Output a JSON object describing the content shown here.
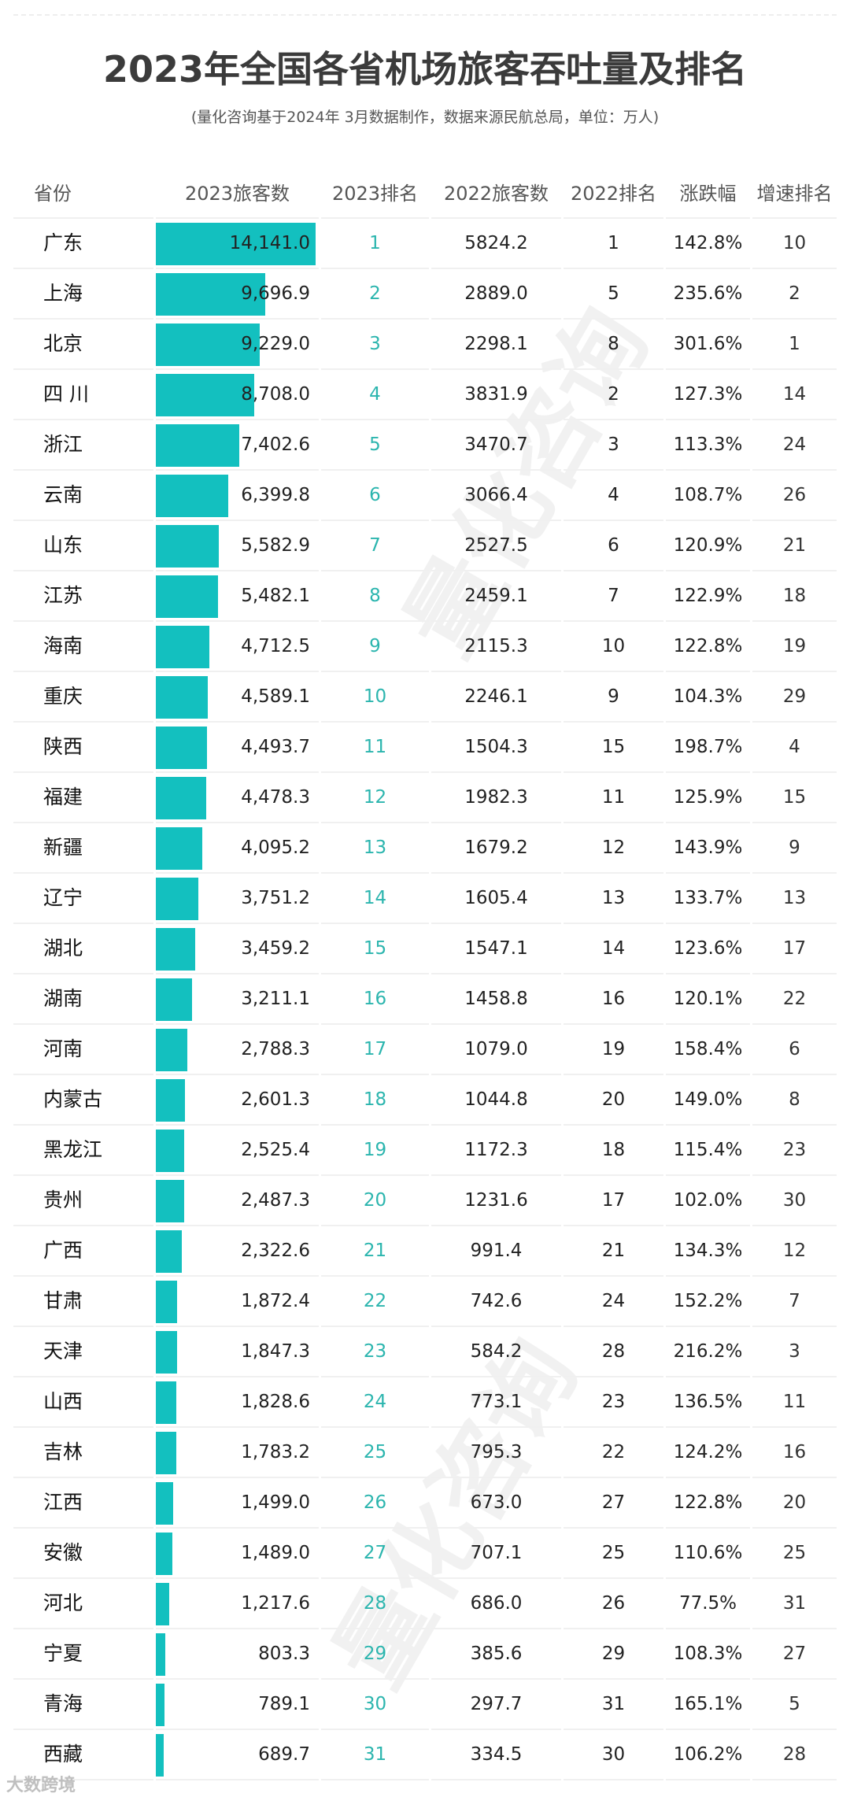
{
  "header": {
    "title": "2023年全国各省机场旅客吞吐量及排名",
    "subtitle": "(量化咨询基于2024年 3月数据制作，数据来源民航总局，单位：万人)"
  },
  "columns": [
    "省份",
    "2023旅客数",
    "2023排名",
    "2022旅客数",
    "2022排名",
    "涨跌幅",
    "增速排名"
  ],
  "colors": {
    "bar": "#13c0bf",
    "rank2023": "#2bb5ae",
    "text": "#222222",
    "header": "#555555",
    "separator": "#f0f0f0"
  },
  "watermarks": [
    "量化咨询",
    "量化咨询"
  ],
  "footer": {
    "logo": "大数跨境"
  },
  "rows": [
    {
      "province": "广东",
      "pax2023": "14,141.0",
      "rank2023": "1",
      "pax2022": "5824.2",
      "rank2022": "1",
      "change": "142.8%",
      "growth_rank": "10"
    },
    {
      "province": "上海",
      "pax2023": "9,696.9",
      "rank2023": "2",
      "pax2022": "2889.0",
      "rank2022": "5",
      "change": "235.6%",
      "growth_rank": "2"
    },
    {
      "province": "北京",
      "pax2023": "9,229.0",
      "rank2023": "3",
      "pax2022": "2298.1",
      "rank2022": "8",
      "change": "301.6%",
      "growth_rank": "1"
    },
    {
      "province": "四 川",
      "pax2023": "8,708.0",
      "rank2023": "4",
      "pax2022": "3831.9",
      "rank2022": "2",
      "change": "127.3%",
      "growth_rank": "14"
    },
    {
      "province": "浙江",
      "pax2023": "7,402.6",
      "rank2023": "5",
      "pax2022": "3470.7",
      "rank2022": "3",
      "change": "113.3%",
      "growth_rank": "24"
    },
    {
      "province": "云南",
      "pax2023": "6,399.8",
      "rank2023": "6",
      "pax2022": "3066.4",
      "rank2022": "4",
      "change": "108.7%",
      "growth_rank": "26"
    },
    {
      "province": "山东",
      "pax2023": "5,582.9",
      "rank2023": "7",
      "pax2022": "2527.5",
      "rank2022": "6",
      "change": "120.9%",
      "growth_rank": "21"
    },
    {
      "province": "江苏",
      "pax2023": "5,482.1",
      "rank2023": "8",
      "pax2022": "2459.1",
      "rank2022": "7",
      "change": "122.9%",
      "growth_rank": "18"
    },
    {
      "province": "海南",
      "pax2023": "4,712.5",
      "rank2023": "9",
      "pax2022": "2115.3",
      "rank2022": "10",
      "change": "122.8%",
      "growth_rank": "19"
    },
    {
      "province": "重庆",
      "pax2023": "4,589.1",
      "rank2023": "10",
      "pax2022": "2246.1",
      "rank2022": "9",
      "change": "104.3%",
      "growth_rank": "29"
    },
    {
      "province": "陕西",
      "pax2023": "4,493.7",
      "rank2023": "11",
      "pax2022": "1504.3",
      "rank2022": "15",
      "change": "198.7%",
      "growth_rank": "4"
    },
    {
      "province": "福建",
      "pax2023": "4,478.3",
      "rank2023": "12",
      "pax2022": "1982.3",
      "rank2022": "11",
      "change": "125.9%",
      "growth_rank": "15"
    },
    {
      "province": "新疆",
      "pax2023": "4,095.2",
      "rank2023": "13",
      "pax2022": "1679.2",
      "rank2022": "12",
      "change": "143.9%",
      "growth_rank": "9"
    },
    {
      "province": "辽宁",
      "pax2023": "3,751.2",
      "rank2023": "14",
      "pax2022": "1605.4",
      "rank2022": "13",
      "change": "133.7%",
      "growth_rank": "13"
    },
    {
      "province": "湖北",
      "pax2023": "3,459.2",
      "rank2023": "15",
      "pax2022": "1547.1",
      "rank2022": "14",
      "change": "123.6%",
      "growth_rank": "17"
    },
    {
      "province": "湖南",
      "pax2023": "3,211.1",
      "rank2023": "16",
      "pax2022": "1458.8",
      "rank2022": "16",
      "change": "120.1%",
      "growth_rank": "22"
    },
    {
      "province": "河南",
      "pax2023": "2,788.3",
      "rank2023": "17",
      "pax2022": "1079.0",
      "rank2022": "19",
      "change": "158.4%",
      "growth_rank": "6"
    },
    {
      "province": "内蒙古",
      "pax2023": "2,601.3",
      "rank2023": "18",
      "pax2022": "1044.8",
      "rank2022": "20",
      "change": "149.0%",
      "growth_rank": "8"
    },
    {
      "province": "黑龙江",
      "pax2023": "2,525.4",
      "rank2023": "19",
      "pax2022": "1172.3",
      "rank2022": "18",
      "change": "115.4%",
      "growth_rank": "23"
    },
    {
      "province": "贵州",
      "pax2023": "2,487.3",
      "rank2023": "20",
      "pax2022": "1231.6",
      "rank2022": "17",
      "change": "102.0%",
      "growth_rank": "30"
    },
    {
      "province": "广西",
      "pax2023": "2,322.6",
      "rank2023": "21",
      "pax2022": "991.4",
      "rank2022": "21",
      "change": "134.3%",
      "growth_rank": "12"
    },
    {
      "province": "甘肃",
      "pax2023": "1,872.4",
      "rank2023": "22",
      "pax2022": "742.6",
      "rank2022": "24",
      "change": "152.2%",
      "growth_rank": "7"
    },
    {
      "province": "天津",
      "pax2023": "1,847.3",
      "rank2023": "23",
      "pax2022": "584.2",
      "rank2022": "28",
      "change": "216.2%",
      "growth_rank": "3"
    },
    {
      "province": "山西",
      "pax2023": "1,828.6",
      "rank2023": "24",
      "pax2022": "773.1",
      "rank2022": "23",
      "change": "136.5%",
      "growth_rank": "11"
    },
    {
      "province": "吉林",
      "pax2023": "1,783.2",
      "rank2023": "25",
      "pax2022": "795.3",
      "rank2022": "22",
      "change": "124.2%",
      "growth_rank": "16"
    },
    {
      "province": "江西",
      "pax2023": "1,499.0",
      "rank2023": "26",
      "pax2022": "673.0",
      "rank2022": "27",
      "change": "122.8%",
      "growth_rank": "20"
    },
    {
      "province": "安徽",
      "pax2023": "1,489.0",
      "rank2023": "27",
      "pax2022": "707.1",
      "rank2022": "25",
      "change": "110.6%",
      "growth_rank": "25"
    },
    {
      "province": "河北",
      "pax2023": "1,217.6",
      "rank2023": "28",
      "pax2022": "686.0",
      "rank2022": "26",
      "change": "77.5%",
      "growth_rank": "31"
    },
    {
      "province": "宁夏",
      "pax2023": "803.3",
      "rank2023": "29",
      "pax2022": "385.6",
      "rank2022": "29",
      "change": "108.3%",
      "growth_rank": "27"
    },
    {
      "province": "青海",
      "pax2023": "789.1",
      "rank2023": "30",
      "pax2022": "297.7",
      "rank2022": "31",
      "change": "165.1%",
      "growth_rank": "5"
    },
    {
      "province": "西藏",
      "pax2023": "689.7",
      "rank2023": "31",
      "pax2022": "334.5",
      "rank2022": "30",
      "change": "106.2%",
      "growth_rank": "28"
    }
  ],
  "chart_data": {
    "type": "table",
    "title": "2023年全国各省机场旅客吞吐量及排名",
    "subtitle": "(量化咨询基于2024年 3月数据制作，数据来源民航总局，单位：万人)",
    "columns": [
      "省份",
      "2023旅客数",
      "2023排名",
      "2022旅客数",
      "2022排名",
      "涨跌幅",
      "增速排名"
    ],
    "categories": [
      "广东",
      "上海",
      "北京",
      "四川",
      "浙江",
      "云南",
      "山东",
      "江苏",
      "海南",
      "重庆",
      "陕西",
      "福建",
      "新疆",
      "辽宁",
      "湖北",
      "湖南",
      "河南",
      "内蒙古",
      "黑龙江",
      "贵州",
      "广西",
      "甘肃",
      "天津",
      "山西",
      "吉林",
      "江西",
      "安徽",
      "河北",
      "宁夏",
      "青海",
      "西藏"
    ],
    "series": [
      {
        "name": "2023旅客数",
        "values": [
          14141.0,
          9696.9,
          9229.0,
          8708.0,
          7402.6,
          6399.8,
          5582.9,
          5482.1,
          4712.5,
          4589.1,
          4493.7,
          4478.3,
          4095.2,
          3751.2,
          3459.2,
          3211.1,
          2788.3,
          2601.3,
          2525.4,
          2487.3,
          2322.6,
          1872.4,
          1847.3,
          1828.6,
          1783.2,
          1499.0,
          1489.0,
          1217.6,
          803.3,
          789.1,
          689.7
        ]
      },
      {
        "name": "2023排名",
        "values": [
          1,
          2,
          3,
          4,
          5,
          6,
          7,
          8,
          9,
          10,
          11,
          12,
          13,
          14,
          15,
          16,
          17,
          18,
          19,
          20,
          21,
          22,
          23,
          24,
          25,
          26,
          27,
          28,
          29,
          30,
          31
        ]
      },
      {
        "name": "2022旅客数",
        "values": [
          5824.2,
          2889.0,
          2298.1,
          3831.9,
          3470.7,
          3066.4,
          2527.5,
          2459.1,
          2115.3,
          2246.1,
          1504.3,
          1982.3,
          1679.2,
          1605.4,
          1547.1,
          1458.8,
          1079.0,
          1044.8,
          1172.3,
          1231.6,
          991.4,
          742.6,
          584.2,
          773.1,
          795.3,
          673.0,
          707.1,
          686.0,
          385.6,
          297.7,
          334.5
        ]
      },
      {
        "name": "2022排名",
        "values": [
          1,
          5,
          8,
          2,
          3,
          4,
          6,
          7,
          10,
          9,
          15,
          11,
          12,
          13,
          14,
          16,
          19,
          20,
          18,
          17,
          21,
          24,
          28,
          23,
          22,
          27,
          25,
          26,
          29,
          31,
          30
        ]
      },
      {
        "name": "涨跌幅(%)",
        "values": [
          142.8,
          235.6,
          301.6,
          127.3,
          113.3,
          108.7,
          120.9,
          122.9,
          122.8,
          104.3,
          198.7,
          125.9,
          143.9,
          133.7,
          123.6,
          120.1,
          158.4,
          149.0,
          115.4,
          102.0,
          134.3,
          152.2,
          216.2,
          136.5,
          124.2,
          122.8,
          110.6,
          77.5,
          108.3,
          165.1,
          106.2
        ]
      },
      {
        "name": "增速排名",
        "values": [
          10,
          2,
          1,
          14,
          24,
          26,
          21,
          18,
          19,
          29,
          4,
          15,
          9,
          13,
          17,
          22,
          6,
          8,
          23,
          30,
          12,
          7,
          3,
          11,
          16,
          20,
          25,
          31,
          27,
          5,
          28
        ]
      }
    ],
    "bar_column": "2023旅客数",
    "bar_max": 14141.0,
    "unit": "万人"
  }
}
